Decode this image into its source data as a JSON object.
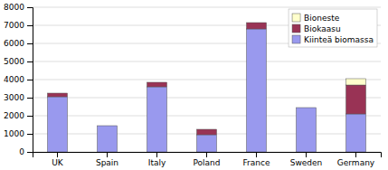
{
  "chart_data": {
    "type": "bar",
    "stacked": true,
    "categories": [
      "UK",
      "Spain",
      "Italy",
      "Poland",
      "France",
      "Sweden",
      "Germany"
    ],
    "series": [
      {
        "name": "Kiinteä biomassa",
        "color": "#9999ee",
        "values": [
          3050,
          1450,
          3600,
          950,
          6800,
          2450,
          2100
        ]
      },
      {
        "name": "Biokaasu",
        "color": "#993355",
        "values": [
          200,
          0,
          250,
          300,
          350,
          0,
          1600
        ]
      },
      {
        "name": "Bioneste",
        "color": "#ffffcc",
        "values": [
          0,
          0,
          0,
          0,
          0,
          0,
          350
        ]
      }
    ],
    "ylim": [
      0,
      8000
    ],
    "yticks": [
      0,
      1000,
      2000,
      3000,
      4000,
      5000,
      6000,
      7000,
      8000
    ],
    "grid": true,
    "legend": "upper right"
  }
}
